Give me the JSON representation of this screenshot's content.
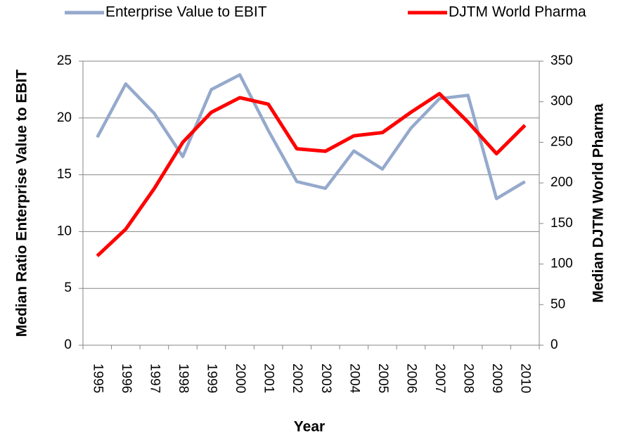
{
  "chart_data": {
    "type": "line",
    "xlabel": "Year",
    "ylabel": "Median Ratio Enterprise Value to EBIT",
    "y2label": "Median DJTM World Pharma",
    "categories": [
      "1995",
      "1996",
      "1997",
      "1998",
      "1999",
      "2000",
      "2001",
      "2002",
      "2003",
      "2004",
      "2005",
      "2006",
      "2007",
      "2008",
      "2009",
      "2010"
    ],
    "series": [
      {
        "name": "Enterprise Value to EBIT",
        "color": "#95a9cc",
        "values": [
          18.3,
          23.0,
          20.4,
          16.6,
          22.5,
          23.8,
          18.9,
          14.4,
          13.8,
          17.1,
          15.5,
          19.1,
          21.7,
          22.0,
          12.9,
          14.4
        ]
      },
      {
        "name": "DJTM World Pharma",
        "color": "#ff0000",
        "axis": "y2",
        "values": [
          110,
          143,
          193,
          250,
          287,
          305,
          297,
          242,
          239,
          258,
          262,
          287,
          310,
          275,
          236,
          271
        ]
      }
    ],
    "ylim": [
      0,
      25
    ],
    "yticks": [
      0,
      5,
      10,
      15,
      20,
      25
    ],
    "y2lim": [
      0,
      350
    ],
    "y2ticks": [
      0,
      50,
      100,
      150,
      200,
      250,
      300,
      350
    ],
    "grid": true,
    "legend": "top"
  }
}
